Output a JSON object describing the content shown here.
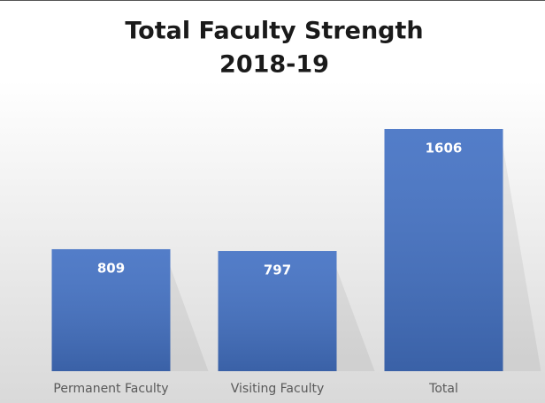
{
  "chart_data": {
    "type": "bar",
    "title": "Total Faculty Strength",
    "subtitle": "2018-19",
    "categories": [
      "Permanent Faculty",
      "Visiting Faculty",
      "Total"
    ],
    "values": [
      809,
      797,
      1606
    ],
    "color": "#4472c4"
  }
}
